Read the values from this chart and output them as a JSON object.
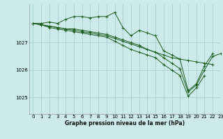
{
  "title": "Graphe pression niveau de la mer (hPa)",
  "background_color": "#cceaea",
  "grid_color": "#aacfcf",
  "line_color": "#1a5c1a",
  "xlim": [
    -0.5,
    23
  ],
  "ylim": [
    1024.4,
    1028.4
  ],
  "yticks": [
    1025,
    1026,
    1027
  ],
  "xticks": [
    0,
    1,
    2,
    3,
    4,
    5,
    6,
    7,
    8,
    9,
    10,
    11,
    12,
    13,
    14,
    15,
    16,
    17,
    18,
    19,
    20,
    21,
    22,
    23
  ],
  "series": [
    [
      1027.7,
      1027.7,
      1027.75,
      1027.7,
      1027.85,
      1027.95,
      1027.95,
      1027.9,
      1027.95,
      1027.95,
      1028.1,
      1027.55,
      1027.25,
      1027.45,
      1027.35,
      1027.25,
      1026.7,
      1026.55,
      1026.4,
      1025.25,
      1025.5,
      1026.15,
      1026.6,
      null
    ],
    [
      1027.7,
      1027.65,
      1027.6,
      1027.55,
      1027.5,
      1027.45,
      1027.4,
      1027.35,
      1027.3,
      1027.25,
      1027.15,
      1027.05,
      1026.95,
      1026.85,
      1026.75,
      1026.65,
      1026.55,
      1026.45,
      1026.4,
      1026.35,
      1026.3,
      1026.25,
      1026.2,
      null
    ],
    [
      1027.7,
      1027.65,
      1027.55,
      1027.5,
      1027.45,
      1027.4,
      1027.35,
      1027.3,
      1027.25,
      1027.2,
      1027.05,
      1026.9,
      1026.75,
      1026.65,
      1026.55,
      1026.45,
      1026.2,
      1026.0,
      1025.8,
      1025.05,
      1025.35,
      1025.8,
      null,
      null
    ],
    [
      1027.7,
      1027.65,
      1027.6,
      1027.55,
      1027.5,
      1027.5,
      1027.45,
      1027.4,
      1027.35,
      1027.3,
      1027.2,
      1027.1,
      1027.0,
      1026.9,
      1026.75,
      1026.65,
      1026.45,
      1026.25,
      1026.05,
      1025.2,
      1025.45,
      1026.0,
      1026.5,
      1026.6
    ]
  ]
}
